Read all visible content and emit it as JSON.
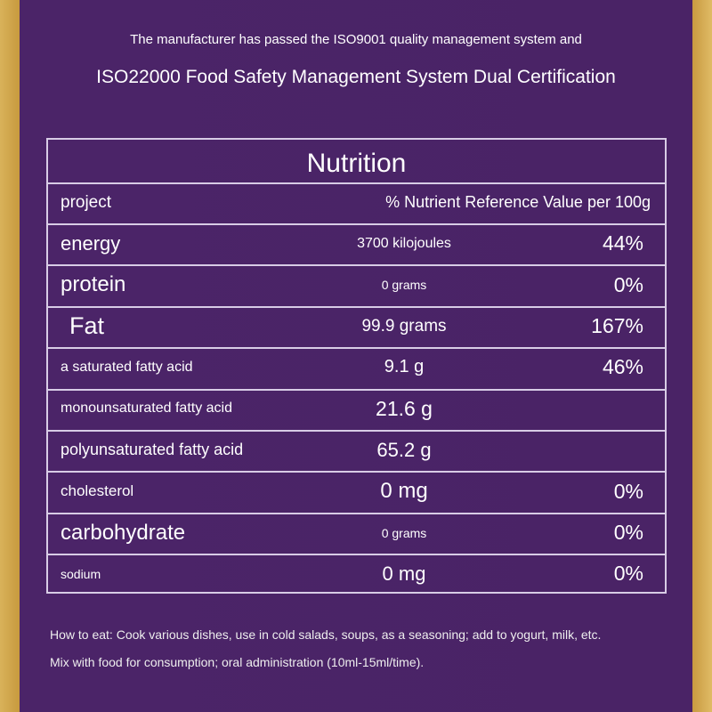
{
  "header": {
    "line1": "The manufacturer has passed the ISO9001 quality management system and",
    "line2": "ISO22000 Food Safety Management System Dual Certification"
  },
  "table": {
    "title": "Nutrition",
    "columns": [
      "project",
      "% Nutrient Reference Value per 100g"
    ],
    "rows": [
      {
        "name": "energy",
        "amount": "3700 kilojoules",
        "nrv": "44%"
      },
      {
        "name": "protein",
        "amount": "0 grams",
        "nrv": "0%"
      },
      {
        "name": "Fat",
        "amount": "99.9 grams",
        "nrv": "167%"
      },
      {
        "name": "a saturated fatty acid",
        "amount": "9.1 g",
        "nrv": "46%"
      },
      {
        "name": "monounsaturated fatty acid",
        "amount": "21.6 g"
      },
      {
        "name": "polyunsaturated fatty acid",
        "amount": "65.2 g"
      },
      {
        "name": "cholesterol",
        "amount": "0 mg",
        "nrv": "0%"
      },
      {
        "name": "carbohydrate",
        "amount": "0 grams",
        "nrv": "0%"
      },
      {
        "name": "sodium",
        "amount": "0 mg",
        "nrv": "0%"
      }
    ]
  },
  "footer": {
    "line1": "How to eat: Cook various dishes, use in cold salads, soups, as a seasoning; add to yogurt, milk, etc.",
    "line2": "Mix with food for consumption; oral administration (10ml-15ml/time)."
  }
}
